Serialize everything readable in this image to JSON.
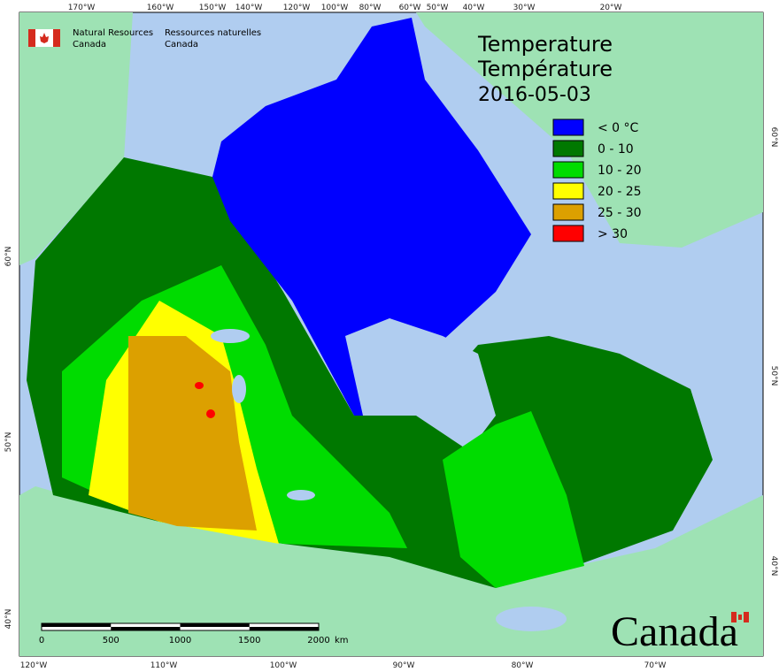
{
  "header": {
    "agency_en": [
      "Natural Resources",
      "Canada"
    ],
    "agency_fr": [
      "Ressources naturelles",
      "Canada"
    ]
  },
  "title": [
    "Temperature",
    "Température"
  ],
  "date": "2016-05-03",
  "legend": [
    {
      "label": "< 0 °C",
      "color": "#0000ff"
    },
    {
      "label": "0 - 10",
      "color": "#007800"
    },
    {
      "label": "10 - 20",
      "color": "#00dc00"
    },
    {
      "label": "20 - 25",
      "color": "#ffff00"
    },
    {
      "label": "25 - 30",
      "color": "#dca000"
    },
    {
      "label": "> 30",
      "color": "#ff0000"
    }
  ],
  "graticule": {
    "top": [
      "170°W",
      "160°W",
      "150°W",
      "140°W",
      "120°W",
      "100°W",
      "80°W",
      "60°W",
      "50°W",
      "40°W",
      "30°W",
      "20°W"
    ],
    "bottom": [
      "120°W",
      "110°W",
      "100°W",
      "90°W",
      "80°W",
      "70°W"
    ],
    "left": [
      "60°N",
      "50°N",
      "40°N"
    ],
    "right": [
      "60°N",
      "50°N",
      "40°N"
    ]
  },
  "scale_bar": {
    "ticks": [
      0,
      500,
      1000,
      1500,
      2000
    ],
    "unit": "km"
  },
  "wordmark": "Canada"
}
